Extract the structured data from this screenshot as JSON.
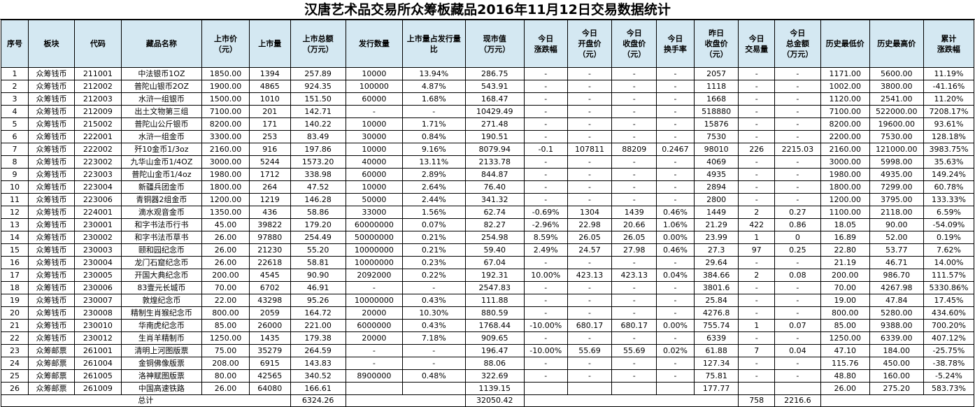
{
  "title": "汉唐艺术品交易所众筹板藏品2016年11月12日交易数据统计",
  "headers": [
    "序号",
    "板块",
    "代码",
    "藏品名称",
    "上市价\n（元）",
    "上市量",
    "上市总额\n（万元）",
    "发行数量",
    "上市量占发行量\n比",
    "现市值\n（万元）",
    "今日\n涨跌幅",
    "今日\n开盘价\n（元）",
    "今日\n收盘价\n（元）",
    "今日\n换手率",
    "昨日\n收盘价\n（元）",
    "今日\n交易量",
    "今日\n总金额\n（万元）",
    "历史最低价",
    "历史最高价",
    "累计\n涨跌幅"
  ],
  "rows": [
    [
      "1",
      "众筹钱币",
      "211001",
      "中法银币1OZ",
      "1850.00",
      "1394",
      "257.89",
      "10000",
      "13.94%",
      "286.75",
      "-",
      "-",
      "-",
      "-",
      "2057",
      "-",
      "-",
      "1171.00",
      "5600.00",
      "11.19%"
    ],
    [
      "2",
      "众筹钱币",
      "212002",
      "普陀山银币2OZ",
      "1900.00",
      "4865",
      "924.35",
      "100000",
      "4.87%",
      "543.91",
      "-",
      "-",
      "-",
      "-",
      "1118",
      "-",
      "-",
      "1002.00",
      "3800.00",
      "-41.16%"
    ],
    [
      "3",
      "众筹钱币",
      "212003",
      "水浒一组银币",
      "1500.00",
      "1010",
      "151.50",
      "60000",
      "1.68%",
      "168.47",
      "-",
      "-",
      "-",
      "-",
      "1668",
      "-",
      "-",
      "1120.00",
      "2541.00",
      "11.20%"
    ],
    [
      "4",
      "众筹钱币",
      "212009",
      "出土文物第三组",
      "7100.00",
      "201",
      "142.71",
      "-",
      "-",
      "10429.49",
      "-",
      "-",
      "-",
      "-",
      "518880",
      "-",
      "-",
      "7100.00",
      "522000.00",
      "7208.17%"
    ],
    [
      "5",
      "众筹钱币",
      "215002",
      "普陀山公斤银币",
      "8200.00",
      "171",
      "140.22",
      "10000",
      "1.71%",
      "271.48",
      "-",
      "-",
      "-",
      "-",
      "15876",
      "-",
      "-",
      "8200.00",
      "19600.00",
      "93.61%"
    ],
    [
      "6",
      "众筹钱币",
      "222001",
      "水浒一组金币",
      "3300.00",
      "253",
      "83.49",
      "30000",
      "0.84%",
      "190.51",
      "-",
      "-",
      "-",
      "-",
      "7530",
      "-",
      "-",
      "2200.00",
      "7530.00",
      "128.18%"
    ],
    [
      "7",
      "众筹钱币",
      "222002",
      "歼10金币1/3oz",
      "2160.00",
      "916",
      "197.86",
      "10000",
      "9.16%",
      "8079.94",
      "-0.1",
      "107811",
      "88209",
      "0.2467",
      "98010",
      "226",
      "2215.03",
      "2160.00",
      "121000.00",
      "3983.75%"
    ],
    [
      "8",
      "众筹钱币",
      "223002",
      "九华山金币1/4OZ",
      "3000.00",
      "5244",
      "1573.20",
      "40000",
      "13.11%",
      "2133.78",
      "-",
      "-",
      "-",
      "-",
      "4069",
      "-",
      "-",
      "3000.00",
      "5998.00",
      "35.63%"
    ],
    [
      "9",
      "众筹钱币",
      "223003",
      "普陀山金币1/4oz",
      "1980.00",
      "1712",
      "338.98",
      "60000",
      "2.89%",
      "844.87",
      "-",
      "-",
      "-",
      "-",
      "4935",
      "-",
      "-",
      "1980.00",
      "4935.00",
      "149.24%"
    ],
    [
      "10",
      "众筹钱币",
      "223004",
      "新疆兵团金币",
      "1800.00",
      "264",
      "47.52",
      "10000",
      "2.64%",
      "76.40",
      "-",
      "-",
      "-",
      "-",
      "2894",
      "-",
      "-",
      "1800.00",
      "7299.00",
      "60.78%"
    ],
    [
      "11",
      "众筹钱币",
      "223006",
      "青铜器2组金币",
      "1200.00",
      "1219",
      "146.28",
      "50000",
      "2.44%",
      "341.32",
      "-",
      "-",
      "-",
      "-",
      "2800",
      "-",
      "-",
      "1200.00",
      "3795.00",
      "133.33%"
    ],
    [
      "12",
      "众筹钱币",
      "224001",
      "滴水观音金币",
      "1350.00",
      "436",
      "58.86",
      "33000",
      "1.56%",
      "62.74",
      "-0.69%",
      "1304",
      "1439",
      "0.46%",
      "1449",
      "2",
      "0.27",
      "1100.00",
      "2118.00",
      "6.59%"
    ],
    [
      "13",
      "众筹钱币",
      "230001",
      "和字书法币行书",
      "45.00",
      "39822",
      "179.20",
      "60000000",
      "0.07%",
      "82.27",
      "-2.96%",
      "22.98",
      "20.66",
      "1.06%",
      "21.29",
      "422",
      "0.86",
      "18.05",
      "90.00",
      "-54.09%"
    ],
    [
      "14",
      "众筹钱币",
      "230002",
      "和字书法币草书",
      "26.00",
      "97880",
      "254.49",
      "50000000",
      "0.21%",
      "254.98",
      "8.59%",
      "26.05",
      "26.05",
      "0.00%",
      "23.99",
      "1",
      "0",
      "16.89",
      "52.00",
      "0.19%"
    ],
    [
      "15",
      "众筹钱币",
      "230003",
      "颐和园纪念币",
      "26.00",
      "21230",
      "55.20",
      "10000000",
      "0.21%",
      "59.40",
      "2.49%",
      "24.57",
      "27.98",
      "0.46%",
      "27.3",
      "97",
      "0.25",
      "22.80",
      "53.77",
      "7.62%"
    ],
    [
      "16",
      "众筹钱币",
      "230004",
      "龙门石窟纪念币",
      "26.00",
      "22618",
      "58.81",
      "10000000",
      "0.23%",
      "67.04",
      "-",
      "-",
      "-",
      "-",
      "29.64",
      "-",
      "-",
      "21.19",
      "46.71",
      "14.00%"
    ],
    [
      "17",
      "众筹钱币",
      "230005",
      "开国大典纪念币",
      "200.00",
      "4545",
      "90.90",
      "2092000",
      "0.22%",
      "192.31",
      "10.00%",
      "423.13",
      "423.13",
      "0.04%",
      "384.66",
      "2",
      "0.08",
      "200.00",
      "986.70",
      "111.57%"
    ],
    [
      "18",
      "众筹钱币",
      "230006",
      "83壹元长城币",
      "70.00",
      "6702",
      "46.91",
      "-",
      "-",
      "2547.83",
      "-",
      "-",
      "-",
      "-",
      "3801.6",
      "-",
      "-",
      "70.00",
      "4267.98",
      "5330.86%"
    ],
    [
      "19",
      "众筹钱币",
      "230007",
      "敦煌纪念币",
      "22.00",
      "43298",
      "95.26",
      "10000000",
      "0.43%",
      "111.88",
      "-",
      "-",
      "-",
      "-",
      "25.84",
      "-",
      "-",
      "19.00",
      "47.84",
      "17.45%"
    ],
    [
      "20",
      "众筹钱币",
      "230008",
      "精制生肖猴纪念币",
      "800.00",
      "2059",
      "164.72",
      "20000",
      "10.30%",
      "880.59",
      "-",
      "-",
      "-",
      "-",
      "4276.8",
      "-",
      "-",
      "800.00",
      "5280.00",
      "434.60%"
    ],
    [
      "21",
      "众筹钱币",
      "230010",
      "华南虎纪念币",
      "85.00",
      "26000",
      "221.00",
      "6000000",
      "0.43%",
      "1768.44",
      "-10.00%",
      "680.17",
      "680.17",
      "0.00%",
      "755.74",
      "1",
      "0.07",
      "85.00",
      "9388.00",
      "700.20%"
    ],
    [
      "22",
      "众筹钱币",
      "230012",
      "生肖羊精制币",
      "1250.00",
      "1435",
      "179.38",
      "20000",
      "7.18%",
      "909.65",
      "-",
      "-",
      "-",
      "-",
      "6339",
      "-",
      "-",
      "1250.00",
      "6339.00",
      "407.12%"
    ],
    [
      "23",
      "众筹邮票",
      "261001",
      "清明上河图版票",
      "75.00",
      "35279",
      "264.59",
      "-",
      "-",
      "196.47",
      "-10.00%",
      "55.69",
      "55.69",
      "0.02%",
      "61.88",
      "7",
      "0.04",
      "47.10",
      "184.00",
      "-25.75%"
    ],
    [
      "24",
      "众筹邮票",
      "261004",
      "金铜佛像版票",
      "208.00",
      "6915",
      "143.83",
      "-",
      "-",
      "88.06",
      "-",
      "-",
      "-",
      "-",
      "127.34",
      "-",
      "-",
      "115.76",
      "450.00",
      "-38.78%"
    ],
    [
      "25",
      "众筹邮票",
      "261005",
      "洛神赋图版票",
      "80.00",
      "42565",
      "340.52",
      "8900000",
      "0.48%",
      "322.69",
      "-",
      "-",
      "-",
      "-",
      "75.81",
      "-",
      "-",
      "48.80",
      "160.00",
      "-5.24%"
    ],
    [
      "26",
      "众筹邮票",
      "261009",
      "中国高速铁路",
      "26.00",
      "64080",
      "166.61",
      "",
      "",
      "1139.15",
      "",
      "",
      "",
      "",
      "177.77",
      "",
      "",
      "26.00",
      "275.20",
      "583.73%"
    ]
  ],
  "total": {
    "label": "总计",
    "list_total": "6324.26",
    "market_value_total": "32050.42",
    "volume_total": "758",
    "amount_total": "2216.6"
  }
}
